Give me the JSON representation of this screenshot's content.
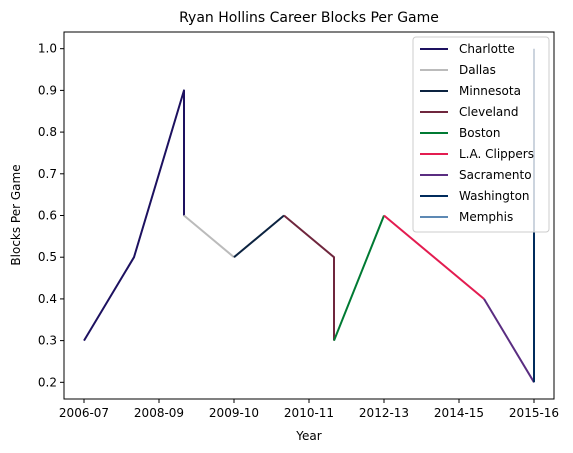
{
  "chart_data": {
    "type": "line",
    "title": "Ryan Hollins Career Blocks Per Game",
    "xlabel": "Year",
    "ylabel": "Blocks Per Game",
    "ylim": [
      0.16,
      1.04
    ],
    "xlim": [
      -0.4,
      9.4
    ],
    "x_ticks": [
      {
        "pos": 0,
        "label": "2006-07"
      },
      {
        "pos": 1.5,
        "label": "2008-09"
      },
      {
        "pos": 3,
        "label": "2009-10"
      },
      {
        "pos": 4.5,
        "label": "2010-11"
      },
      {
        "pos": 6,
        "label": "2012-13"
      },
      {
        "pos": 7.5,
        "label": "2014-15"
      },
      {
        "pos": 9,
        "label": "2015-16"
      }
    ],
    "y_ticks": [
      "0.2",
      "0.3",
      "0.4",
      "0.5",
      "0.6",
      "0.7",
      "0.8",
      "0.9",
      "1.0"
    ],
    "legend_position": "top-right",
    "series": [
      {
        "name": "Charlotte",
        "color": "#1d1160",
        "points": [
          [
            0,
            0.3
          ],
          [
            1,
            0.5
          ],
          [
            2,
            0.9
          ],
          [
            2,
            0.6
          ]
        ]
      },
      {
        "name": "Dallas",
        "color": "#bbbbbb",
        "points": [
          [
            2,
            0.6
          ],
          [
            3,
            0.5
          ]
        ]
      },
      {
        "name": "Minnesota",
        "color": "#0c2340",
        "points": [
          [
            3,
            0.5
          ],
          [
            4,
            0.6
          ]
        ]
      },
      {
        "name": "Cleveland",
        "color": "#6f263d",
        "points": [
          [
            4,
            0.6
          ],
          [
            5,
            0.5
          ],
          [
            5,
            0.3
          ]
        ]
      },
      {
        "name": "Boston",
        "color": "#007a33",
        "points": [
          [
            5,
            0.3
          ],
          [
            6,
            0.6
          ]
        ]
      },
      {
        "name": "L.A. Clippers",
        "color": "#e31c50",
        "points": [
          [
            6,
            0.6
          ],
          [
            8,
            0.4
          ]
        ]
      },
      {
        "name": "Sacramento",
        "color": "#5a2d81",
        "points": [
          [
            8,
            0.4
          ],
          [
            9,
            0.2
          ]
        ]
      },
      {
        "name": "Washington",
        "color": "#002b5c",
        "points": [
          [
            9,
            0.2
          ],
          [
            9,
            1.0
          ]
        ]
      },
      {
        "name": "Memphis",
        "color": "#5d89b4",
        "points": [
          [
            9,
            1.0
          ]
        ]
      }
    ]
  }
}
